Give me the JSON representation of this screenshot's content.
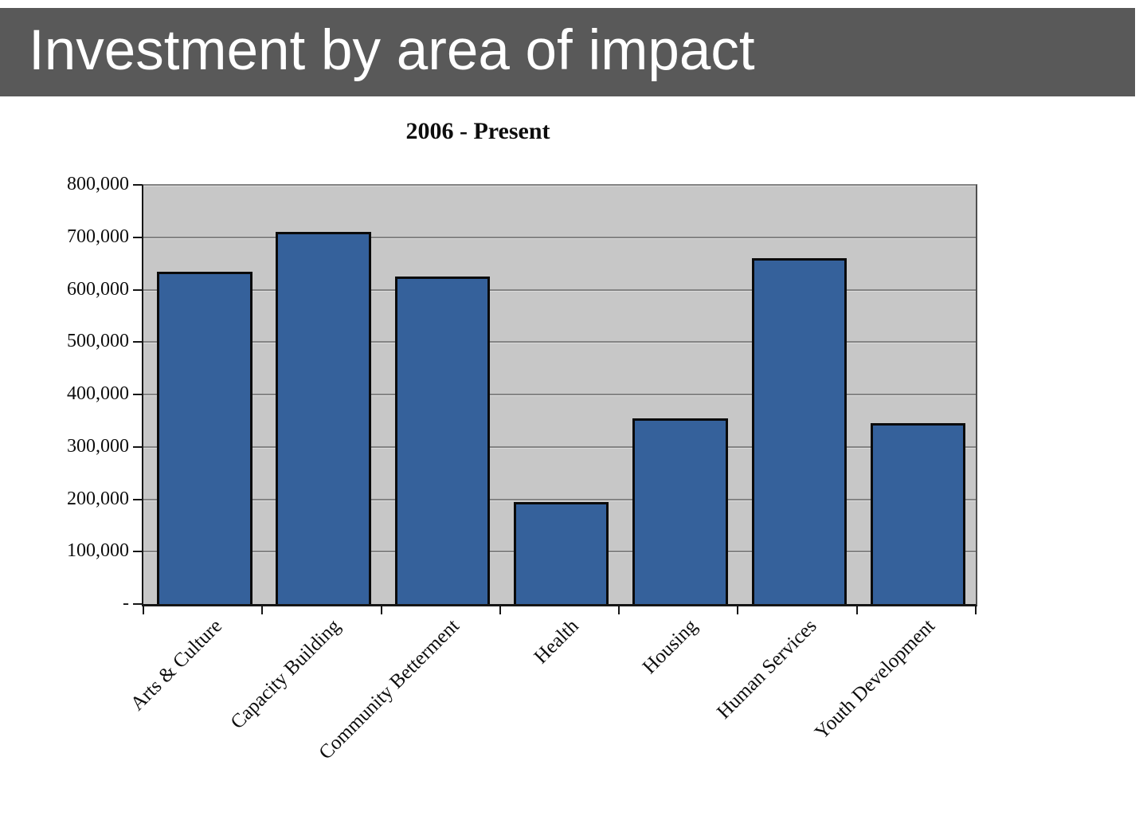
{
  "header": {
    "title": "Investment by area of impact"
  },
  "chart_data": {
    "type": "bar",
    "title": "2006 - Present",
    "categories": [
      "Arts & Culture",
      "Capacity Building",
      "Community Betterment",
      "Health",
      "Housing",
      "Human Services",
      "Youth Development"
    ],
    "values": [
      635000,
      710000,
      625000,
      195000,
      355000,
      660000,
      345000
    ],
    "xlabel": "",
    "ylabel": "",
    "ylim": [
      0,
      800000
    ],
    "ytick_interval": 100000,
    "ytick_labels": [
      "-",
      "100,000",
      "200,000",
      "300,000",
      "400,000",
      "500,000",
      "600,000",
      "700,000",
      "800,000"
    ],
    "grid": true,
    "legend": null,
    "x_label_rotation_deg": -45,
    "colors": {
      "bar_fill": "#35619b",
      "bar_border": "#0a0a0a",
      "plot_bg": "#c7c7c7",
      "gridline": "#848484",
      "banner_bg": "#595959",
      "banner_text": "#ffffff",
      "text": "#0d0d0d"
    }
  }
}
